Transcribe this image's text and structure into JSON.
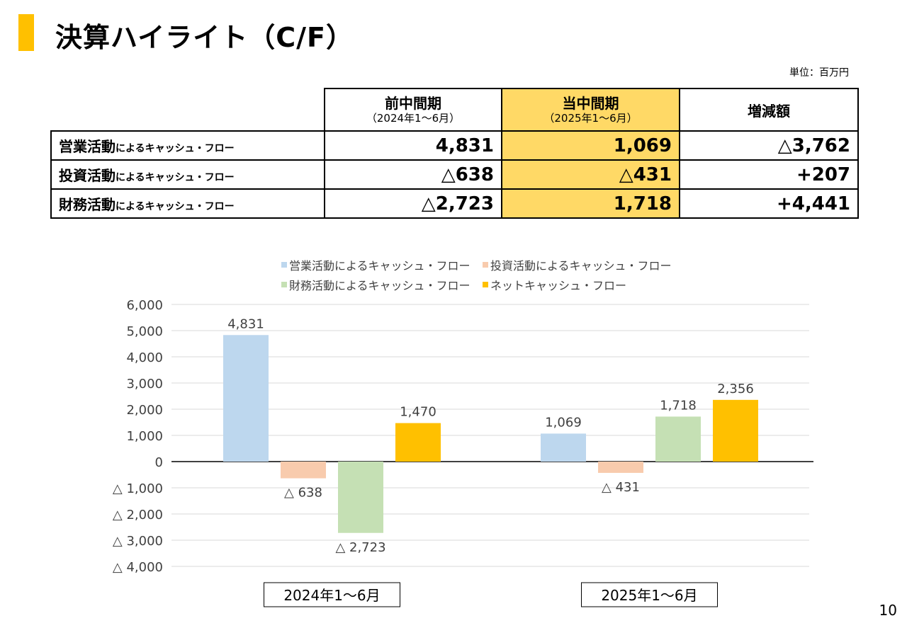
{
  "page": {
    "title": "決算ハイライト（C/F）",
    "unit": "単位：百万円",
    "page_number": "10"
  },
  "table": {
    "headers": [
      {
        "main": "前中間期",
        "sub": "（2024年1～6月）"
      },
      {
        "main": "当中間期",
        "sub": "（2025年1～6月）"
      },
      {
        "main": "増減額",
        "sub": ""
      }
    ],
    "rows": [
      {
        "label_main": "営業活動",
        "label_sub": "によるキャッシュ・フロー",
        "prev": "4,831",
        "curr": "1,069",
        "diff": "△3,762"
      },
      {
        "label_main": "投資活動",
        "label_sub": "によるキャッシュ・フロー",
        "prev": "△638",
        "curr": "△431",
        "diff": "+207"
      },
      {
        "label_main": "財務活動",
        "label_sub": "によるキャッシュ・フロー",
        "prev": "△2,723",
        "curr": "1,718",
        "diff": "+4,441"
      }
    ],
    "highlight_color": "#FFD966"
  },
  "chart_data": {
    "type": "bar",
    "title": "",
    "xlabel": "",
    "ylabel": "",
    "categories": [
      "2024年1～6月",
      "2025年1～6月"
    ],
    "series": [
      {
        "name": "営業活動によるキャッシュ・フロー",
        "color": "#BDD7EE",
        "values": [
          4831,
          1069
        ],
        "labels": [
          "4,831",
          "1,069"
        ]
      },
      {
        "name": "投資活動によるキャッシュ・フロー",
        "color": "#F8CBAD",
        "values": [
          -638,
          -431
        ],
        "labels": [
          "△ 638",
          "△ 431"
        ]
      },
      {
        "name": "財務活動によるキャッシュ・フロー",
        "color": "#C5E0B4",
        "values": [
          -2723,
          1718
        ],
        "labels": [
          "△ 2,723",
          "1,718"
        ]
      },
      {
        "name": "ネットキャッシュ・フロー",
        "color": "#FFC000",
        "values": [
          1470,
          2356
        ],
        "labels": [
          "1,470",
          "2,356"
        ]
      }
    ],
    "ylim": [
      -4000,
      6000
    ],
    "yticks": [
      6000,
      5000,
      4000,
      3000,
      2000,
      1000,
      0,
      -1000,
      -2000,
      -3000,
      -4000
    ],
    "ytick_labels": [
      "6,000",
      "5,000",
      "4,000",
      "3,000",
      "2,000",
      "1,000",
      "0",
      "△ 1,000",
      "△ 2,000",
      "△ 3,000",
      "△ 4,000"
    ],
    "grid": true,
    "legend_position": "top"
  }
}
